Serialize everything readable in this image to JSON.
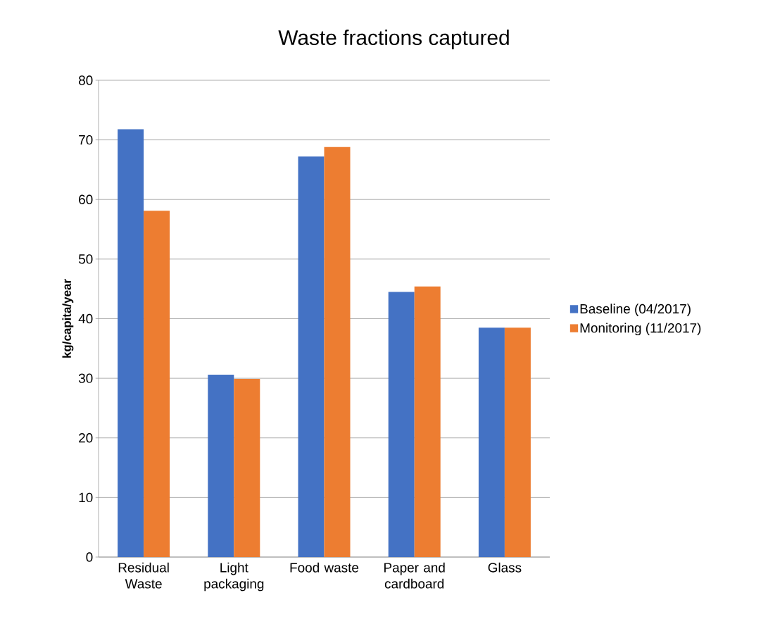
{
  "chart_data": {
    "type": "bar",
    "title": "Waste fractions captured",
    "ylabel": "kg/capita/year",
    "categories": [
      "Residual Waste",
      "Light packaging",
      "Food waste",
      "Paper and cardboard",
      "Glass"
    ],
    "series": [
      {
        "name": "Baseline (04/2017)",
        "color": "#4472c4",
        "values": [
          71.8,
          30.6,
          67.2,
          44.5,
          38.5
        ]
      },
      {
        "name": "Monitoring (11/2017)",
        "color": "#ed7d31",
        "values": [
          58.1,
          29.9,
          68.8,
          45.4,
          38.5
        ]
      }
    ],
    "ylim": [
      0,
      80
    ],
    "yticks": [
      0,
      10,
      20,
      30,
      40,
      50,
      60,
      70,
      80
    ],
    "grid": "y",
    "legend": "right"
  }
}
